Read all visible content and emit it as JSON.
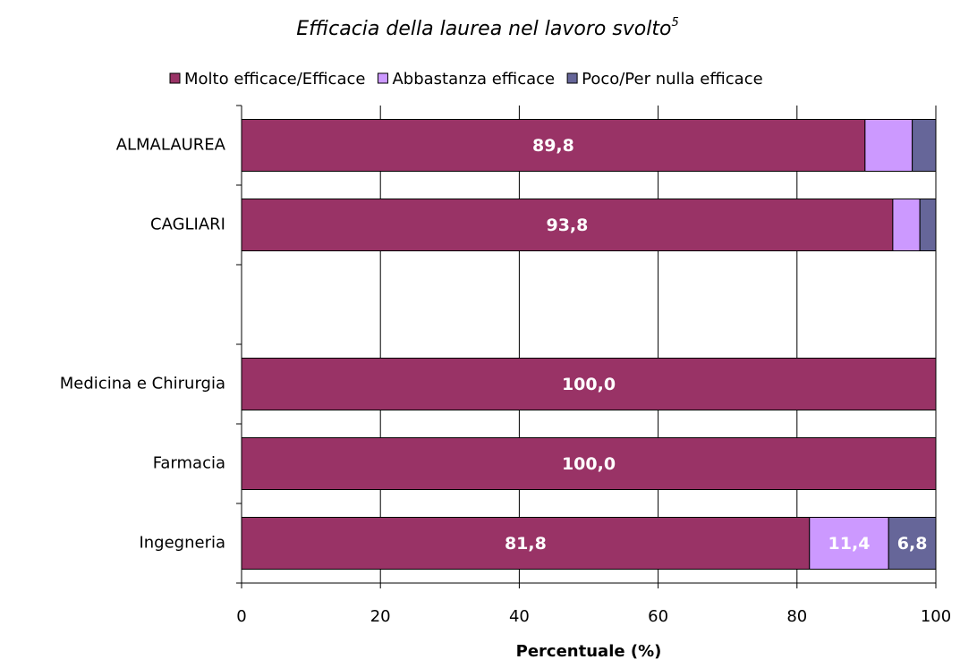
{
  "chart_data": {
    "type": "stacked-barh",
    "title": "Efficacia della laurea nel lavoro svolto",
    "title_note": "5",
    "x_label": "Percentuale (%)",
    "categories": [
      "ALMALAUREA",
      "CAGLIARI",
      null,
      "Medicina e Chirurgia",
      "Farmacia",
      "Ingegneria"
    ],
    "series": [
      {
        "name": "Molto efficace/Efficace",
        "color": "#993366",
        "values": [
          89.8,
          93.8,
          null,
          100.0,
          100.0,
          81.8
        ],
        "value_labels": [
          "89,8",
          "93,8",
          null,
          "100,0",
          "100,0",
          "81,8"
        ]
      },
      {
        "name": "Abbastanza efficace",
        "color": "#cc99ff",
        "values": [
          6.8,
          3.9,
          null,
          0,
          0,
          11.4
        ],
        "value_labels": [
          null,
          null,
          null,
          null,
          null,
          "11,4"
        ]
      },
      {
        "name": "Poco/Per nulla efficace",
        "color": "#666699",
        "values": [
          3.4,
          2.3,
          null,
          0,
          0,
          6.8
        ],
        "value_labels": [
          null,
          null,
          null,
          null,
          null,
          "6,8"
        ]
      }
    ],
    "xlim": [
      0,
      100
    ],
    "xticks": [
      0,
      20,
      40,
      60,
      80,
      100
    ],
    "grid": true,
    "legend": "top"
  }
}
